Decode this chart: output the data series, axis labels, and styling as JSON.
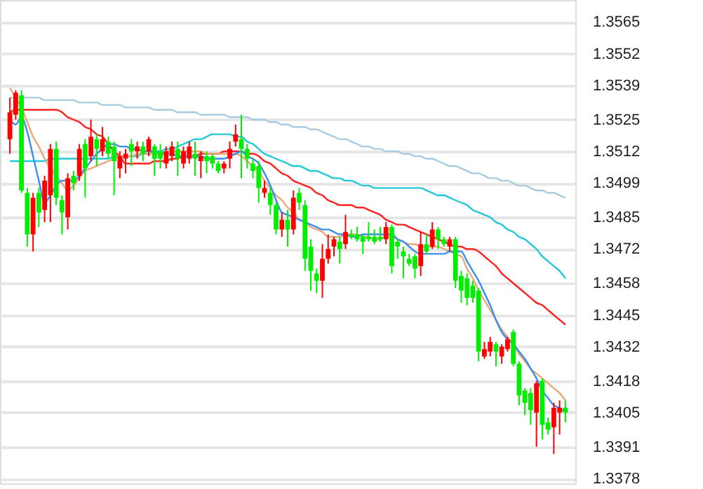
{
  "chart_data": {
    "type": "candlestick",
    "categories": [
      null,
      null,
      null,
      null,
      null,
      null,
      null,
      null,
      null,
      null,
      null,
      null,
      null,
      null,
      null,
      null,
      null,
      null,
      null,
      null,
      null,
      null,
      null,
      null,
      null,
      null,
      null,
      null,
      null,
      null,
      null,
      null,
      null,
      null,
      null,
      null,
      null,
      null,
      null,
      null,
      null,
      null,
      null,
      null,
      null,
      null,
      null,
      null,
      null,
      null,
      null,
      null,
      null,
      null,
      null,
      null,
      null,
      null,
      null,
      null,
      null,
      null,
      null,
      null,
      null,
      null,
      null,
      null,
      null,
      null,
      null,
      null,
      null,
      null,
      null,
      null,
      null,
      null,
      null,
      null,
      null,
      null,
      null,
      null,
      null,
      null,
      null,
      null,
      null,
      null,
      null,
      null,
      null,
      null,
      null,
      null,
      null
    ],
    "ohlc": [
      [
        1.3517,
        1.3534,
        1.3511,
        1.3528
      ],
      [
        1.3527,
        1.3537,
        1.3525,
        1.3536
      ],
      [
        1.3535,
        1.3537,
        1.3495,
        1.3496
      ],
      [
        1.3495,
        1.3497,
        1.3473,
        1.3478
      ],
      [
        1.3478,
        1.3495,
        1.3471,
        1.3493
      ],
      [
        1.3495,
        1.3497,
        1.3481,
        1.3487
      ],
      [
        1.3488,
        1.3502,
        1.3483,
        1.35
      ],
      [
        1.3494,
        1.3515,
        1.3483,
        1.3513
      ],
      [
        1.3513,
        1.3516,
        1.349,
        1.3493
      ],
      [
        1.3492,
        1.3494,
        1.3478,
        1.3487
      ],
      [
        1.3485,
        1.3503,
        1.348,
        1.3501
      ],
      [
        1.3502,
        1.3504,
        1.3496,
        1.3499
      ],
      [
        1.3502,
        1.3515,
        1.35,
        1.3513
      ],
      [
        1.3515,
        1.3517,
        1.3493,
        1.3505
      ],
      [
        1.351,
        1.3525,
        1.3508,
        1.3518
      ],
      [
        1.3517,
        1.3519,
        1.3506,
        1.3513
      ],
      [
        1.3512,
        1.3522,
        1.351,
        1.3517
      ],
      [
        1.3516,
        1.3518,
        1.3509,
        1.3511
      ],
      [
        1.3514,
        1.3516,
        1.3494,
        1.3508
      ],
      [
        1.3505,
        1.3512,
        1.3501,
        1.351
      ],
      [
        1.3509,
        1.3513,
        1.3503,
        1.3511
      ],
      [
        1.3515,
        1.3517,
        1.3506,
        1.3512
      ],
      [
        1.3512,
        1.3516,
        1.3509,
        1.3514
      ],
      [
        1.3514,
        1.3516,
        1.3508,
        1.3511
      ],
      [
        1.3512,
        1.3518,
        1.351,
        1.3517
      ],
      [
        1.3514,
        1.3515,
        1.3502,
        1.3509
      ],
      [
        1.3512,
        1.3515,
        1.3505,
        1.3509
      ],
      [
        1.3507,
        1.3514,
        1.3505,
        1.3512
      ],
      [
        1.351,
        1.3516,
        1.3508,
        1.3514
      ],
      [
        1.3513,
        1.3516,
        1.3502,
        1.3509
      ],
      [
        1.3507,
        1.3514,
        1.3505,
        1.3512
      ],
      [
        1.3509,
        1.3516,
        1.3507,
        1.3514
      ],
      [
        1.3511,
        1.3516,
        1.3502,
        1.3509
      ],
      [
        1.3508,
        1.3512,
        1.3501,
        1.351
      ],
      [
        1.351,
        1.3512,
        1.3503,
        1.3508
      ],
      [
        1.351,
        1.3511,
        1.3505,
        1.3507
      ],
      [
        1.3507,
        1.3508,
        1.3503,
        1.3504
      ],
      [
        1.3505,
        1.3508,
        1.3503,
        1.3507
      ],
      [
        1.3509,
        1.3516,
        1.3505,
        1.3513
      ],
      [
        1.3516,
        1.3523,
        1.3514,
        1.3519
      ],
      [
        1.3517,
        1.3527,
        1.3501,
        1.3513
      ],
      [
        1.3513,
        1.3515,
        1.3505,
        1.3509
      ],
      [
        1.3507,
        1.3509,
        1.3501,
        1.3504
      ],
      [
        1.3506,
        1.3508,
        1.3491,
        1.3497
      ],
      [
        1.3495,
        1.35,
        1.3493,
        1.3497
      ],
      [
        1.3495,
        1.3497,
        1.3486,
        1.349
      ],
      [
        1.349,
        1.3491,
        1.3478,
        1.348
      ],
      [
        1.348,
        1.3487,
        1.3477,
        1.3484
      ],
      [
        1.3484,
        1.3488,
        1.3473,
        1.348
      ],
      [
        1.348,
        1.3496,
        1.3478,
        1.3493
      ],
      [
        1.3495,
        1.3497,
        1.3488,
        1.3491
      ],
      [
        1.349,
        1.3492,
        1.3463,
        1.3468
      ],
      [
        1.3473,
        1.3476,
        1.3455,
        1.3463
      ],
      [
        1.3462,
        1.3464,
        1.3454,
        1.3459
      ],
      [
        1.3459,
        1.3474,
        1.3452,
        1.3468
      ],
      [
        1.3468,
        1.3478,
        1.3466,
        1.3472
      ],
      [
        1.3473,
        1.3477,
        1.3469,
        1.3476
      ],
      [
        1.3475,
        1.3477,
        1.3466,
        1.3472
      ],
      [
        1.3474,
        1.3486,
        1.3472,
        1.3479
      ],
      [
        1.3478,
        1.348,
        1.3476,
        1.3477
      ],
      [
        1.3478,
        1.3481,
        1.3475,
        1.3476
      ],
      [
        1.3477,
        1.3478,
        1.347,
        1.3475
      ],
      [
        1.3477,
        1.3483,
        1.3475,
        1.3476
      ],
      [
        1.3477,
        1.348,
        1.3474,
        1.3475
      ],
      [
        1.3477,
        1.3481,
        1.3475,
        1.3476
      ],
      [
        1.3476,
        1.3483,
        1.3474,
        1.3481
      ],
      [
        1.3481,
        1.3482,
        1.3462,
        1.3465
      ],
      [
        1.3475,
        1.3476,
        1.3468,
        1.3473
      ],
      [
        1.3471,
        1.3473,
        1.346,
        1.3469
      ],
      [
        1.3468,
        1.347,
        1.3465,
        1.3466
      ],
      [
        1.3469,
        1.347,
        1.346,
        1.3464
      ],
      [
        1.3465,
        1.3479,
        1.3461,
        1.3474
      ],
      [
        1.3474,
        1.3478,
        1.347,
        1.3471
      ],
      [
        1.3473,
        1.3483,
        1.3472,
        1.348
      ],
      [
        1.348,
        1.3481,
        1.3472,
        1.3476
      ],
      [
        1.3476,
        1.3477,
        1.3473,
        1.3474
      ],
      [
        1.3473,
        1.3477,
        1.3471,
        1.3476
      ],
      [
        1.3476,
        1.3477,
        1.3456,
        1.3459
      ],
      [
        1.3461,
        1.3463,
        1.345,
        1.3455
      ],
      [
        1.346,
        1.3462,
        1.3449,
        1.3452
      ],
      [
        1.3457,
        1.3459,
        1.345,
        1.3452
      ],
      [
        1.3455,
        1.3456,
        1.3426,
        1.343
      ],
      [
        1.3428,
        1.3434,
        1.3427,
        1.3431
      ],
      [
        1.343,
        1.3436,
        1.3428,
        1.3434
      ],
      [
        1.3433,
        1.3434,
        1.3424,
        1.343
      ],
      [
        1.3428,
        1.3433,
        1.3425,
        1.3432
      ],
      [
        1.3431,
        1.3436,
        1.343,
        1.3435
      ],
      [
        1.3438,
        1.3439,
        1.3424,
        1.3425
      ],
      [
        1.3425,
        1.3426,
        1.3408,
        1.3412
      ],
      [
        1.3414,
        1.3415,
        1.3404,
        1.3409
      ],
      [
        1.3413,
        1.3415,
        1.34,
        1.3406
      ],
      [
        1.3405,
        1.3418,
        1.3391,
        1.3417
      ],
      [
        1.3418,
        1.3419,
        1.3394,
        1.34
      ],
      [
        1.3401,
        1.3403,
        1.3396,
        1.3398
      ],
      [
        1.3399,
        1.3409,
        1.3388,
        1.3407
      ],
      [
        1.3405,
        1.341,
        1.3396,
        1.3407
      ],
      [
        1.3407,
        1.341,
        1.3401,
        1.3405
      ]
    ],
    "colors": [
      "#ff0000",
      "#ff0000",
      "#00ee00",
      "#00ee00",
      "#ff0000",
      "#00ee00",
      "#ff0000",
      "#ff0000",
      "#00ee00",
      "#00ee00",
      "#ff0000",
      "#00ee00",
      "#ff0000",
      "#00ee00",
      "#ff0000",
      "#00ee00",
      "#ff0000",
      "#00ee00",
      "#00ee00",
      "#ff0000",
      "#ff0000",
      "#00ee00",
      "#ff0000",
      "#00ee00",
      "#ff0000",
      "#00ee00",
      "#00ee00",
      "#ff0000",
      "#ff0000",
      "#00ee00",
      "#ff0000",
      "#ff0000",
      "#00ee00",
      "#ff0000",
      "#00ee00",
      "#00ee00",
      "#00ee00",
      "#ff0000",
      "#ff0000",
      "#ff0000",
      "#00ee00",
      "#00ee00",
      "#00ee00",
      "#00ee00",
      "#ff0000",
      "#00ee00",
      "#00ee00",
      "#ff0000",
      "#00ee00",
      "#ff0000",
      "#00ee00",
      "#00ee00",
      "#00ee00",
      "#00ee00",
      "#ff0000",
      "#ff0000",
      "#ff0000",
      "#00ee00",
      "#ff0000",
      "#00ee00",
      "#00ee00",
      "#00ee00",
      "#00ee00",
      "#00ee00",
      "#00ee00",
      "#ff0000",
      "#00ee00",
      "#00ee00",
      "#00ee00",
      "#00ee00",
      "#00ee00",
      "#ff0000",
      "#00ee00",
      "#ff0000",
      "#00ee00",
      "#00ee00",
      "#ff0000",
      "#00ee00",
      "#00ee00",
      "#00ee00",
      "#00ee00",
      "#00ee00",
      "#ff0000",
      "#ff0000",
      "#00ee00",
      "#ff0000",
      "#ff0000",
      "#00ee00",
      "#00ee00",
      "#00ee00",
      "#00ee00",
      "#ff0000",
      "#00ee00",
      "#00ee00",
      "#ff0000",
      "#ff0000",
      "#00ee00"
    ],
    "series": [
      {
        "type": "line",
        "color": "#a8cbe0",
        "values": [
          1.3534,
          1.3534,
          1.3534,
          1.3534,
          1.3534,
          1.3534,
          1.3533,
          1.3533,
          1.3533,
          1.3533,
          1.3533,
          1.3533,
          1.3532,
          1.3532,
          1.3532,
          1.3532,
          1.3531,
          1.3531,
          1.3531,
          1.3531,
          1.353,
          1.353,
          1.353,
          1.353,
          1.353,
          1.3529,
          1.3529,
          1.3529,
          1.3529,
          1.3528,
          1.3528,
          1.3528,
          1.3528,
          1.3527,
          1.3527,
          1.3527,
          1.3527,
          1.3527,
          1.3526,
          1.3526,
          1.3526,
          1.3526,
          1.3525,
          1.3525,
          1.3525,
          1.3524,
          1.3524,
          1.3523,
          1.3523,
          1.3522,
          1.3522,
          1.3522,
          1.3521,
          1.3521,
          1.352,
          1.3519,
          1.3518,
          1.3517,
          1.3517,
          1.3516,
          1.3515,
          1.3514,
          1.3514,
          1.3513,
          1.3513,
          1.3512,
          1.3512,
          1.3512,
          1.3511,
          1.3511,
          1.351,
          1.351,
          1.3509,
          1.3509,
          1.3508,
          1.3507,
          1.3506,
          1.3506,
          1.3505,
          1.3504,
          1.3503,
          1.3503,
          1.3502,
          1.3501,
          1.3501,
          1.35,
          1.35,
          1.3499,
          1.3498,
          1.3498,
          1.3497,
          1.3496,
          1.3496,
          1.3495,
          1.3495,
          1.3494,
          1.3493
        ]
      },
      {
        "type": "line",
        "color": "#20c8d8",
        "values": [
          1.3508,
          1.3508,
          1.3508,
          1.3508,
          1.3508,
          1.3508,
          1.3508,
          1.3509,
          1.3509,
          1.3509,
          1.3509,
          1.3509,
          1.3509,
          1.3509,
          1.3509,
          1.3509,
          1.3509,
          1.3509,
          1.351,
          1.351,
          1.351,
          1.351,
          1.351,
          1.3511,
          1.3511,
          1.3512,
          1.3512,
          1.3513,
          1.3513,
          1.3514,
          1.3515,
          1.3516,
          1.3517,
          1.3517,
          1.3518,
          1.3519,
          1.3519,
          1.3519,
          1.3519,
          1.3518,
          1.3518,
          1.3516,
          1.3515,
          1.3513,
          1.3511,
          1.351,
          1.3509,
          1.3508,
          1.3507,
          1.3506,
          1.3506,
          1.3505,
          1.3504,
          1.3504,
          1.3503,
          1.3502,
          1.3501,
          1.3501,
          1.35,
          1.35,
          1.3499,
          1.3498,
          1.3498,
          1.3497,
          1.3497,
          1.3497,
          1.3497,
          1.3497,
          1.3497,
          1.3497,
          1.3497,
          1.3497,
          1.3496,
          1.3495,
          1.3494,
          1.3494,
          1.3493,
          1.3492,
          1.3491,
          1.349,
          1.3488,
          1.3487,
          1.3486,
          1.3485,
          1.3483,
          1.3482,
          1.348,
          1.3479,
          1.3477,
          1.3476,
          1.3474,
          1.3472,
          1.3469,
          1.3467,
          1.3465,
          1.3463,
          1.346
        ]
      },
      {
        "type": "line",
        "color": "#ff2020",
        "values": [
          1.3528,
          1.3529,
          1.3529,
          1.3529,
          1.3529,
          1.3529,
          1.3529,
          1.3529,
          1.3529,
          1.3528,
          1.3526,
          1.3525,
          1.3524,
          1.3522,
          1.3521,
          1.3519,
          1.3518,
          1.3515,
          1.3512,
          1.351,
          1.3507,
          1.3507,
          1.3507,
          1.3507,
          1.3507,
          1.3508,
          1.3508,
          1.3508,
          1.3509,
          1.3509,
          1.351,
          1.351,
          1.351,
          1.3511,
          1.3511,
          1.3511,
          1.3511,
          1.3512,
          1.3512,
          1.3512,
          1.3512,
          1.3511,
          1.3511,
          1.351,
          1.3508,
          1.3507,
          1.3505,
          1.3503,
          1.3502,
          1.35,
          1.3499,
          1.3498,
          1.3497,
          1.3495,
          1.3494,
          1.3492,
          1.3491,
          1.349,
          1.349,
          1.349,
          1.3489,
          1.3489,
          1.3488,
          1.3487,
          1.3486,
          1.3484,
          1.3483,
          1.3482,
          1.3482,
          1.3481,
          1.348,
          1.3479,
          1.3478,
          1.3477,
          1.3476,
          1.3475,
          1.3474,
          1.3473,
          1.3473,
          1.3472,
          1.3472,
          1.3471,
          1.3469,
          1.3467,
          1.3465,
          1.3462,
          1.346,
          1.3458,
          1.3456,
          1.3454,
          1.3452,
          1.345,
          1.3449,
          1.3447,
          1.3445,
          1.3443,
          1.3441
        ]
      },
      {
        "type": "line",
        "color": "#e8a878",
        "values": [
          1.3538,
          1.3534,
          1.353,
          1.3524,
          1.3518,
          1.3514,
          1.3509,
          1.3505,
          1.3502,
          1.3499,
          1.3496,
          1.3498,
          1.3501,
          1.3504,
          1.3505,
          1.3506,
          1.3507,
          1.3508,
          1.3509,
          1.351,
          1.351,
          1.351,
          1.3511,
          1.3511,
          1.3511,
          1.3511,
          1.3511,
          1.3512,
          1.3512,
          1.3512,
          1.3512,
          1.3512,
          1.3512,
          1.3512,
          1.3511,
          1.3511,
          1.3511,
          1.3511,
          1.3511,
          1.3511,
          1.351,
          1.3508,
          1.3506,
          1.3504,
          1.35,
          1.3497,
          1.3494,
          1.3492,
          1.3489,
          1.3487,
          1.3484,
          1.3483,
          1.3481,
          1.348,
          1.3479,
          1.3477,
          1.3477,
          1.3477,
          1.3478,
          1.3478,
          1.3478,
          1.3477,
          1.3477,
          1.3476,
          1.3476,
          1.3477,
          1.3477,
          1.3476,
          1.3475,
          1.3474,
          1.3474,
          1.3473,
          1.3473,
          1.3473,
          1.3473,
          1.3472,
          1.3471,
          1.347,
          1.3469,
          1.3464,
          1.346,
          1.3455,
          1.3451,
          1.3447,
          1.3443,
          1.3439,
          1.3436,
          1.3433,
          1.3429,
          1.3426,
          1.3423,
          1.3421,
          1.3419,
          1.3417,
          1.3415,
          1.3413,
          1.341
        ]
      },
      {
        "type": "line",
        "color": "#3a8ef0",
        "values": [
          1.3525,
          1.3523,
          1.3526,
          1.352,
          1.351,
          1.35,
          1.3491,
          1.3494,
          1.3498,
          1.35,
          1.35,
          1.35,
          1.3502,
          1.3505,
          1.3508,
          1.3511,
          1.3513,
          1.3515,
          1.3515,
          1.3514,
          1.3514,
          1.3513,
          1.3513,
          1.3512,
          1.3512,
          1.3512,
          1.3511,
          1.3511,
          1.3511,
          1.351,
          1.351,
          1.351,
          1.351,
          1.351,
          1.3509,
          1.3509,
          1.3509,
          1.3509,
          1.351,
          1.3511,
          1.3512,
          1.351,
          1.3509,
          1.3507,
          1.3503,
          1.3498,
          1.3492,
          1.3487,
          1.3486,
          1.3485,
          1.3484,
          1.3483,
          1.3482,
          1.3481,
          1.348,
          1.348,
          1.3479,
          1.3478,
          1.3478,
          1.3477,
          1.3477,
          1.3478,
          1.3478,
          1.3478,
          1.3478,
          1.3478,
          1.3478,
          1.3476,
          1.3475,
          1.3473,
          1.3471,
          1.347,
          1.347,
          1.347,
          1.347,
          1.347,
          1.3471,
          1.3471,
          1.3471,
          1.3467,
          1.3463,
          1.3459,
          1.3454,
          1.3449,
          1.3443,
          1.3438,
          1.3435,
          1.3433,
          1.343,
          1.3427,
          1.3423,
          1.3419,
          1.3414,
          1.3411,
          1.3408,
          1.3407,
          1.3405
        ]
      }
    ],
    "ylim": [
      1.3376,
      1.3574
    ],
    "yticks": [
      1.3565,
      1.3552,
      1.3539,
      1.3525,
      1.3512,
      1.3499,
      1.3485,
      1.3472,
      1.3458,
      1.3445,
      1.3432,
      1.3418,
      1.3405,
      1.3391,
      1.3378
    ],
    "grid": "y",
    "tick_labels": "y"
  }
}
